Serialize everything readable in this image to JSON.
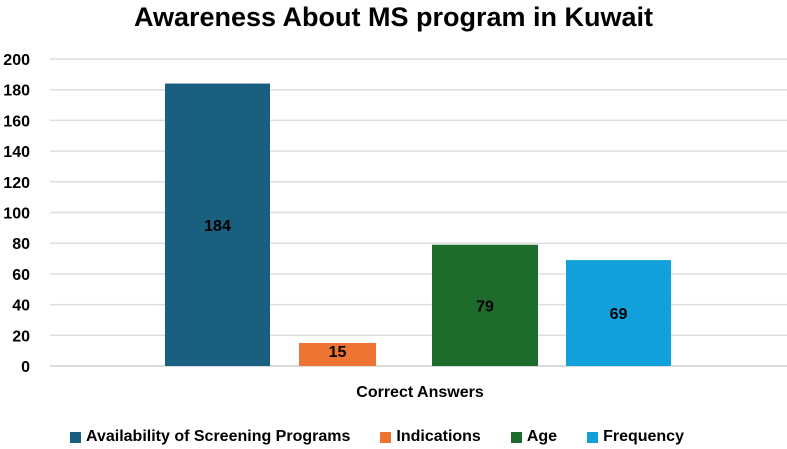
{
  "chart_data": {
    "type": "bar",
    "title": "Awareness About MS program in Kuwait",
    "xlabel": "Correct Answers",
    "ylabel": "",
    "categories": [
      "Correct Answers"
    ],
    "ylim": [
      0,
      200
    ],
    "yticks": [
      0,
      20,
      40,
      60,
      80,
      100,
      120,
      140,
      160,
      180,
      200
    ],
    "grid": true,
    "legend_position": "bottom",
    "series": [
      {
        "name": "Availability of Screening Programs",
        "values": [
          184
        ],
        "color": "#1a5e80"
      },
      {
        "name": "Indications",
        "values": [
          15
        ],
        "color": "#ee7434"
      },
      {
        "name": "Age",
        "values": [
          79
        ],
        "color": "#1e6c2c"
      },
      {
        "name": "Frequency",
        "values": [
          69
        ],
        "color": "#11a0d9"
      }
    ]
  }
}
